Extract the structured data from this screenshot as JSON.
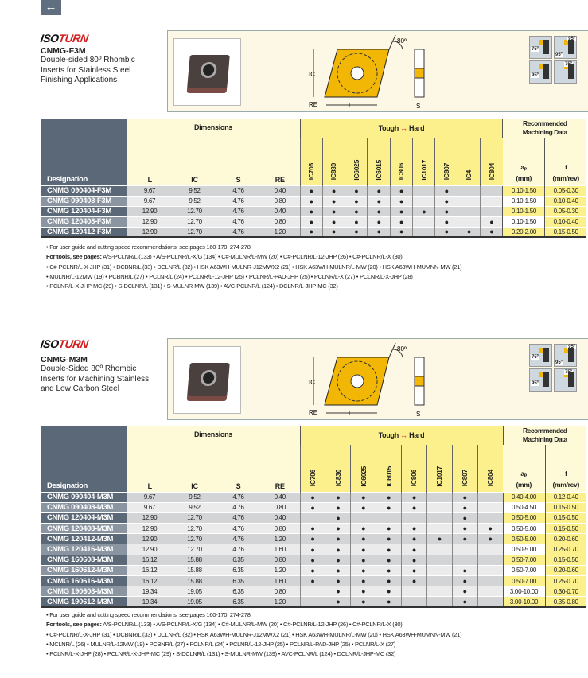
{
  "nav": {
    "back_icon": "arrow-left-icon"
  },
  "colors": {
    "header_dark": "#5b6877",
    "yellow": "#fbf08c",
    "cream": "#fef9d6",
    "brand_red": "#d42020"
  },
  "sections": [
    {
      "logo": "ISOTURN",
      "logo_a": "ISO",
      "logo_b": "TURN",
      "code": "CNMG-F3M",
      "desc": [
        "Double-sided 80º Rhombic",
        "Inserts for Stainless Steel",
        "Finishing Applications"
      ],
      "diagram": {
        "angle": "80º",
        "ic": "IC",
        "re": "RE",
        "l": "L",
        "s": "S"
      },
      "tool_angles": [
        "75º",
        "95º",
        "95º",
        "95º",
        "75º"
      ],
      "headers": {
        "designation": "Designation",
        "dimensions": "Dimensions",
        "L": "L",
        "IC": "IC",
        "S": "S",
        "RE": "RE",
        "tough": "Tough",
        "arrow": "↔",
        "hard": "Hard",
        "rec1": "Recommended",
        "rec2": "Machining Data",
        "ap": "aₚ",
        "ap_unit": "(mm)",
        "f": "f",
        "f_unit": "(mm/rev)"
      },
      "grades": [
        "IC706",
        "IC830",
        "IC6025",
        "IC6015",
        "IC806",
        "IC1017",
        "IC807",
        "IC4",
        "IC804"
      ],
      "rows": [
        {
          "des": "CNMG 090404-F3M",
          "L": "9.67",
          "IC": "9.52",
          "S": "4.76",
          "RE": "0.40",
          "g": [
            1,
            1,
            1,
            1,
            1,
            0,
            1,
            0,
            0
          ],
          "ap": "0.10-1.50",
          "f": "0.05-0.30"
        },
        {
          "des": "CNMG 090408-F3M",
          "L": "9.67",
          "IC": "9.52",
          "S": "4.76",
          "RE": "0.80",
          "g": [
            1,
            1,
            1,
            1,
            1,
            0,
            1,
            0,
            0
          ],
          "ap": "0.10-1.50",
          "f": "0.10-0.40"
        },
        {
          "des": "CNMG 120404-F3M",
          "L": "12.90",
          "IC": "12.70",
          "S": "4.76",
          "RE": "0.40",
          "g": [
            1,
            1,
            1,
            1,
            1,
            1,
            1,
            0,
            0
          ],
          "ap": "0.10-1.50",
          "f": "0.05-0.30"
        },
        {
          "des": "CNMG 120408-F3M",
          "L": "12.90",
          "IC": "12.70",
          "S": "4.76",
          "RE": "0.80",
          "g": [
            1,
            1,
            1,
            1,
            1,
            0,
            1,
            0,
            1
          ],
          "ap": "0.10-1.50",
          "f": "0.10-0.40"
        },
        {
          "des": "CNMG 120412-F3M",
          "L": "12.90",
          "IC": "12.70",
          "S": "4.76",
          "RE": "1.20",
          "g": [
            1,
            1,
            1,
            1,
            1,
            0,
            1,
            1,
            1
          ],
          "ap": "0.20-2.00",
          "f": "0.15-0.50"
        }
      ],
      "note1": "For user guide and cutting speed recommendations, see pages 160-170, 274-278",
      "tools_label": "For tools, see pages:",
      "tools_lines": [
        "A/S-PCLNR/L (133) • A/S-PCLNR/L-X/G (134) • C#-MULNR/L-MW (20) • C#-PCLNR/L-12-JHP (26) • C#-PCLNR/L-X (30)",
        "C#-PCLNR/L-X-JHP (31) • DCBNR/L (33) • DCLNR/L (32) • HSK A63WH-MULNR-J12MWX2 (21) • HSK A63WH-MULNR/L-MW (20) • HSK A63WH-MUMNN-MW (21)",
        "MULNR/L-12MW (19) • PCBNR/L (27) • PCLNR/L (24) • PCLNR/L-12-JHP (25) • PCLNR/L-PAD-JHP (25) • PCLNR/L-X (27) • PCLNR/L-X-JHP (28)",
        "PCLNR/L-X-JHP-MC (29) • S-DCLNR/L (131) • S-MULNR-MW (139) • AVC-PCLNR/L (124) • DCLNR/L-JHP-MC (32)"
      ]
    },
    {
      "logo": "ISOTURN",
      "logo_a": "ISO",
      "logo_b": "TURN",
      "code": "CNMG-M3M",
      "desc": [
        "Double-Sided 80º Rhombic",
        "Inserts for Machining Stainless",
        "and Low Carbon Steel"
      ],
      "diagram": {
        "angle": "80º",
        "ic": "IC",
        "re": "RE",
        "l": "L",
        "s": "S"
      },
      "tool_angles": [
        "75º",
        "95º",
        "95º",
        "95º",
        "75º"
      ],
      "headers": {
        "designation": "Designation",
        "dimensions": "Dimensions",
        "L": "L",
        "IC": "IC",
        "S": "S",
        "RE": "RE",
        "tough": "Tough",
        "arrow": "↔",
        "hard": "Hard",
        "rec1": "Recommended",
        "rec2": "Machining Data",
        "ap": "aₚ",
        "ap_unit": "(mm)",
        "f": "f",
        "f_unit": "(mm/rev)"
      },
      "grades": [
        "IC706",
        "IC830",
        "IC6025",
        "IC6015",
        "IC806",
        "IC1017",
        "IC807",
        "IC804"
      ],
      "rows": [
        {
          "des": "CNMG 090404-M3M",
          "L": "9.67",
          "IC": "9.52",
          "S": "4.76",
          "RE": "0.40",
          "g": [
            1,
            1,
            1,
            1,
            1,
            0,
            1,
            0
          ],
          "ap": "0.40-4.00",
          "f": "0.12-0.40"
        },
        {
          "des": "CNMG 090408-M3M",
          "L": "9.67",
          "IC": "9.52",
          "S": "4.76",
          "RE": "0.80",
          "g": [
            1,
            1,
            1,
            1,
            1,
            0,
            1,
            0
          ],
          "ap": "0.50-4.50",
          "f": "0.15-0.50"
        },
        {
          "des": "CNMG 120404-M3M",
          "L": "12.90",
          "IC": "12.70",
          "S": "4.76",
          "RE": "0.40",
          "g": [
            0,
            1,
            0,
            0,
            0,
            0,
            1,
            0
          ],
          "ap": "0.50-5.00",
          "f": "0.15-0.50"
        },
        {
          "des": "CNMG 120408-M3M",
          "L": "12.90",
          "IC": "12.70",
          "S": "4.76",
          "RE": "0.80",
          "g": [
            1,
            1,
            1,
            1,
            1,
            0,
            1,
            1
          ],
          "ap": "0.50-5.00",
          "f": "0.15-0.50"
        },
        {
          "des": "CNMG 120412-M3M",
          "L": "12.90",
          "IC": "12.70",
          "S": "4.76",
          "RE": "1.20",
          "g": [
            1,
            1,
            1,
            1,
            1,
            1,
            1,
            1
          ],
          "ap": "0.50-5.00",
          "f": "0.20-0.60"
        },
        {
          "des": "CNMG 120416-M3M",
          "L": "12.90",
          "IC": "12.70",
          "S": "4.76",
          "RE": "1.60",
          "g": [
            1,
            1,
            1,
            1,
            1,
            0,
            0,
            0
          ],
          "ap": "0.50-5.00",
          "f": "0.25-0.70"
        },
        {
          "des": "CNMG 160608-M3M",
          "L": "16.12",
          "IC": "15.88",
          "S": "6.35",
          "RE": "0.80",
          "g": [
            1,
            1,
            1,
            1,
            1,
            0,
            0,
            0
          ],
          "ap": "0.50-7.00",
          "f": "0.15-0.50"
        },
        {
          "des": "CNMG 160612-M3M",
          "L": "16.12",
          "IC": "15.88",
          "S": "6.35",
          "RE": "1.20",
          "g": [
            1,
            1,
            1,
            1,
            1,
            0,
            1,
            0
          ],
          "ap": "0.50-7.00",
          "f": "0.20-0.60"
        },
        {
          "des": "CNMG 160616-M3M",
          "L": "16.12",
          "IC": "15.88",
          "S": "6.35",
          "RE": "1.60",
          "g": [
            1,
            1,
            1,
            1,
            1,
            0,
            1,
            0
          ],
          "ap": "0.50-7.00",
          "f": "0.25-0.70"
        },
        {
          "des": "CNMG 190608-M3M",
          "L": "19.34",
          "IC": "19.05",
          "S": "6.35",
          "RE": "0.80",
          "g": [
            0,
            1,
            1,
            1,
            0,
            0,
            1,
            0
          ],
          "ap": "3.00-10.00",
          "f": "0.30-0.70"
        },
        {
          "des": "CNMG 190612-M3M",
          "L": "19.34",
          "IC": "19.05",
          "S": "6.35",
          "RE": "1.20",
          "g": [
            0,
            1,
            1,
            1,
            0,
            0,
            1,
            0
          ],
          "ap": "3.00-10.00",
          "f": "0.35-0.80"
        }
      ],
      "note1": "For user guide and cutting speed recommendations, see pages 160-170, 274-278",
      "tools_label": "For tools, see pages:",
      "tools_lines": [
        "A/S-PCLNR/L (133) • A/S-PCLNR/L-X/G (134) • C#-MULNR/L-MW (20) • C#-PCLNR/L-12-JHP (26) • C#-PCLNR/L-X (30)",
        "C#-PCLNR/L-X-JHP (31) • DCBNR/L (33) • DCLNR/L (32) • HSK A63WH-MULNR-J12MWX2 (21) • HSK A63WH-MULNR/L-MW (20) • HSK A63WH-MUMNN-MW (21)",
        "MCLNR/L (26) • MULNR/L-12MW (19) • PCBNR/L (27) • PCLNR/L (24) • PCLNR/L-12-JHP (25) • PCLNR/L-PAD-JHP (25) • PCLNR/L-X (27)",
        "PCLNR/L-X-JHP (28) • PCLNR/L-X-JHP-MC (29) • S-DCLNR/L (131) • S-MULNR-MW (139) • AVC-PCLNR/L (124) • DCLNR/L-JHP-MC (32)"
      ]
    }
  ]
}
